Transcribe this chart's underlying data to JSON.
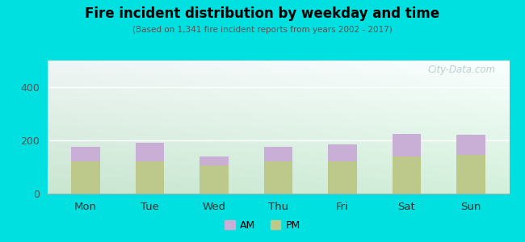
{
  "categories": [
    "Mon",
    "Tue",
    "Wed",
    "Thu",
    "Fri",
    "Sat",
    "Sun"
  ],
  "pm_values": [
    120,
    120,
    105,
    120,
    120,
    140,
    145
  ],
  "am_values": [
    55,
    70,
    35,
    55,
    65,
    85,
    75
  ],
  "am_color": "#c9aed6",
  "pm_color": "#bdc98a",
  "title": "Fire incident distribution by weekday and time",
  "subtitle": "(Based on 1,341 fire incident reports from years 2002 - 2017)",
  "ylim": [
    0,
    500
  ],
  "yticks": [
    0,
    200,
    400
  ],
  "background_color": "#00e0e0",
  "plot_bg_topleft": "#d6ede3",
  "plot_bg_topright": "#e8eef2",
  "plot_bg_bottom": "#c8e6d0",
  "watermark": "City-Data.com",
  "legend_labels": [
    "AM",
    "PM"
  ],
  "bar_width": 0.45
}
